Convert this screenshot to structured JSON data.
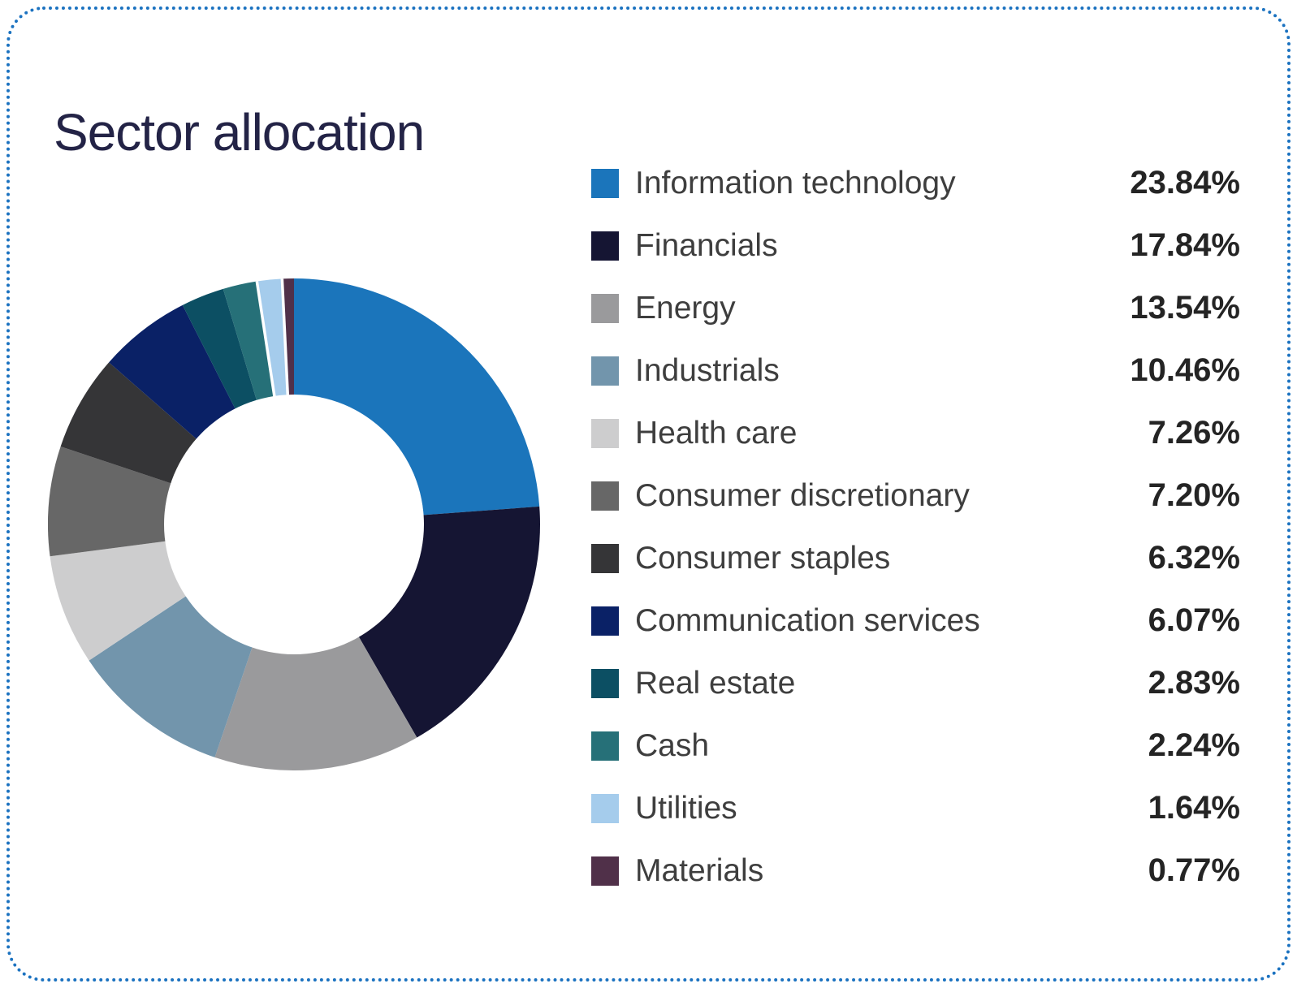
{
  "card": {
    "border_color": "#1B72C0",
    "title_color": "#232346"
  },
  "chart_data": {
    "type": "pie",
    "subtype": "donut",
    "title": "Sector allocation",
    "legend_position": "right",
    "start_angle_deg": 0,
    "direction": "clockwise",
    "inner_radius_ratio": 0.528,
    "white_separator_before_indices": [
      10,
      11
    ],
    "series": [
      {
        "label": "Information technology",
        "value": 23.84,
        "display": "23.84%",
        "color": "#1B75BB"
      },
      {
        "label": "Financials",
        "value": 17.84,
        "display": "17.84%",
        "color": "#151533"
      },
      {
        "label": "Energy",
        "value": 13.54,
        "display": "13.54%",
        "color": "#9A9A9C"
      },
      {
        "label": "Industrials",
        "value": 10.46,
        "display": "10.46%",
        "color": "#7295AC"
      },
      {
        "label": "Health care",
        "value": 7.26,
        "display": "7.26%",
        "color": "#CDCDCE"
      },
      {
        "label": "Consumer discretionary",
        "value": 7.2,
        "display": "7.20%",
        "color": "#676767"
      },
      {
        "label": "Consumer staples",
        "value": 6.32,
        "display": "6.32%",
        "color": "#353537"
      },
      {
        "label": "Communication services",
        "value": 6.07,
        "display": "6.07%",
        "color": "#0A2166"
      },
      {
        "label": "Real estate",
        "value": 2.83,
        "display": "2.83%",
        "color": "#0C4F63"
      },
      {
        "label": "Cash",
        "value": 2.24,
        "display": "2.24%",
        "color": "#267078"
      },
      {
        "label": "Utilities",
        "value": 1.64,
        "display": "1.64%",
        "color": "#A5CCEC"
      },
      {
        "label": "Materials",
        "value": 0.77,
        "display": "0.77%",
        "color": "#503049"
      }
    ]
  }
}
